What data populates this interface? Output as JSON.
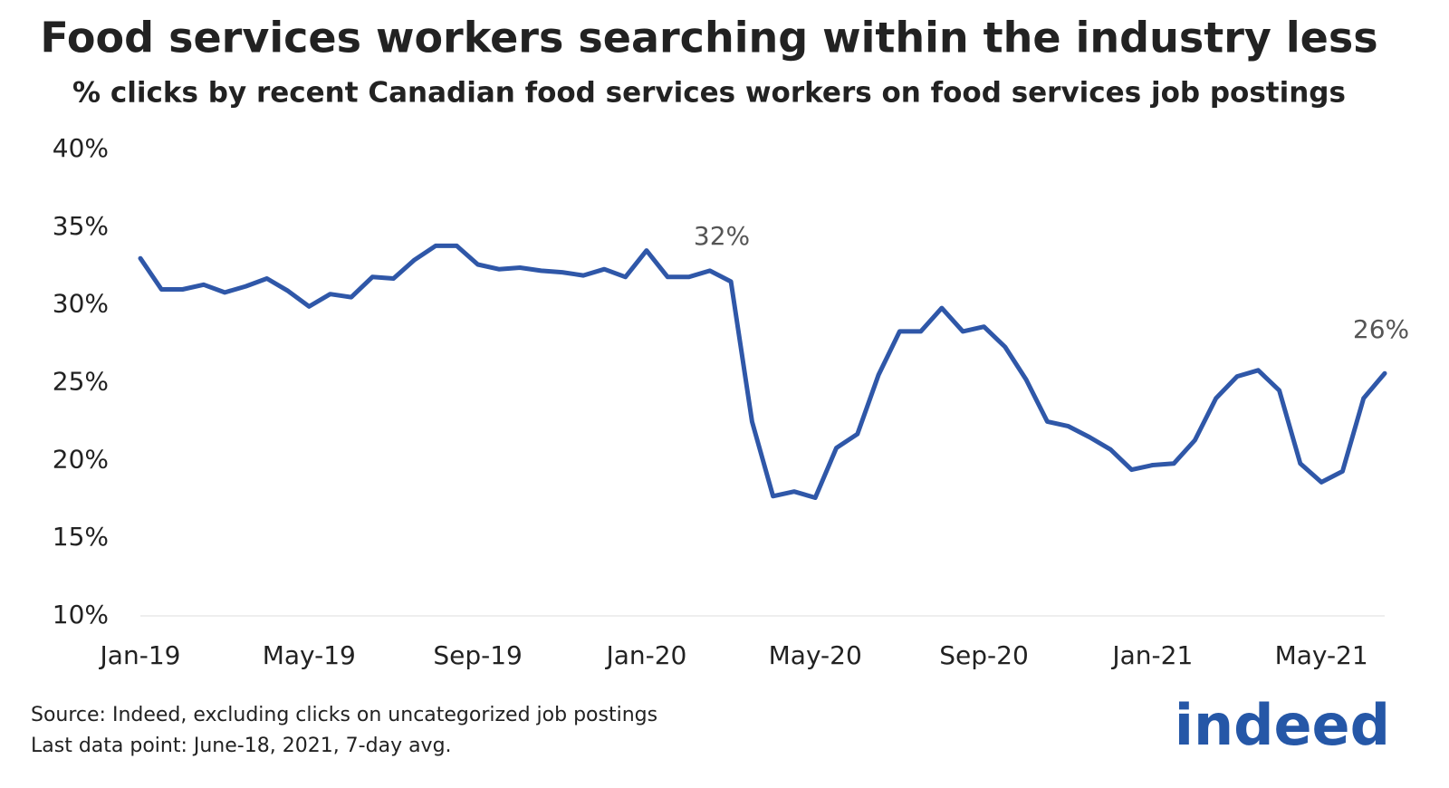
{
  "chart_data": {
    "type": "line",
    "title": "Food services workers searching within the industry less",
    "subtitle": "% clicks by recent Canadian food services workers on food services job postings",
    "categories": [
      "Jan-19",
      null,
      null,
      null,
      null,
      null,
      null,
      null,
      "May-19",
      null,
      null,
      null,
      null,
      null,
      null,
      null,
      "Sep-19",
      null,
      null,
      null,
      null,
      null,
      null,
      null,
      "Jan-20",
      null,
      null,
      null,
      null,
      null,
      null,
      null,
      "May-20",
      null,
      null,
      null,
      null,
      null,
      null,
      null,
      "Sep-20",
      null,
      null,
      null,
      null,
      null,
      null,
      null,
      "Jan-21",
      null,
      null,
      null,
      null,
      null,
      null,
      null,
      "May-21",
      null,
      null,
      null
    ],
    "series": [
      {
        "color": "#2f57a8",
        "values": [
          33.0,
          31.0,
          31.0,
          31.3,
          30.8,
          31.2,
          31.7,
          30.9,
          29.9,
          30.7,
          30.5,
          31.8,
          31.7,
          32.9,
          33.8,
          33.8,
          32.6,
          32.3,
          32.4,
          32.2,
          32.1,
          31.9,
          32.3,
          31.8,
          33.5,
          31.8,
          31.8,
          32.2,
          31.5,
          22.5,
          17.7,
          18.0,
          17.6,
          20.8,
          21.7,
          25.5,
          28.3,
          28.3,
          29.8,
          28.3,
          28.6,
          27.3,
          25.2,
          22.5,
          22.2,
          21.5,
          20.7,
          19.4,
          19.7,
          19.8,
          21.3,
          24.0,
          25.4,
          25.8,
          24.5,
          19.8,
          18.6,
          19.3,
          24.0,
          25.6
        ]
      }
    ],
    "ylim": [
      10,
      40
    ],
    "yticks": [
      {
        "value": 10,
        "label": "10%"
      },
      {
        "value": 15,
        "label": "15%"
      },
      {
        "value": 20,
        "label": "20%"
      },
      {
        "value": 25,
        "label": "25%"
      },
      {
        "value": 30,
        "label": "30%"
      },
      {
        "value": 35,
        "label": "35%"
      },
      {
        "value": 40,
        "label": "40%"
      }
    ],
    "grid": false,
    "annotations": [
      "32%",
      "26%"
    ],
    "source": "Source: Indeed, excluding clicks on uncategorized job postings",
    "note": "Last data point: June-18, 2021, 7-day avg.",
    "logo": "indeed"
  }
}
